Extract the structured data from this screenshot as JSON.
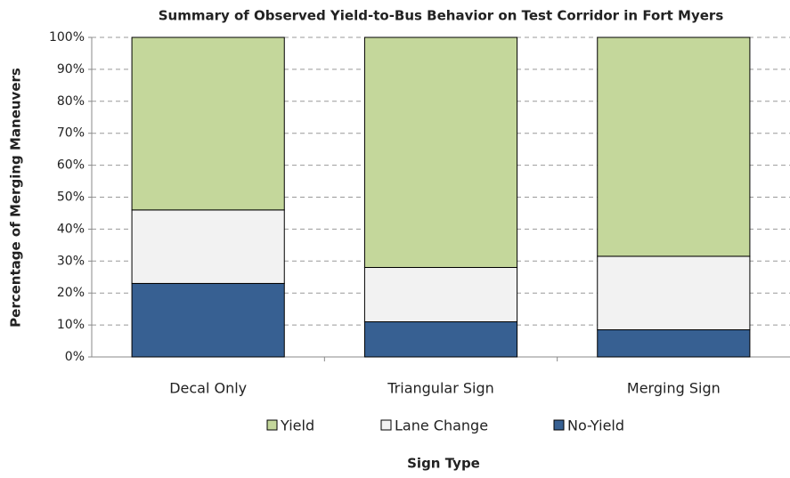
{
  "chart_data": {
    "type": "stacked_bar",
    "title": "Summary of Observed Yield-to-Bus Behavior on Test Corridor in Fort Myers",
    "x_label": "Sign Type",
    "y_label": "Percentage of Merging Maneuvers",
    "categories": [
      "Decal Only",
      "Triangular Sign",
      "Merging Sign"
    ],
    "series": [
      {
        "name": "Yield",
        "color": "#c4d79b",
        "values": [
          54,
          72,
          68.5
        ]
      },
      {
        "name": "Lane Change",
        "color": "#f2f2f2",
        "values": [
          23,
          17,
          23
        ]
      },
      {
        "name": "No-Yield",
        "color": "#376092",
        "values": [
          23,
          11,
          8.5
        ]
      }
    ],
    "ylim": [
      0,
      100
    ],
    "yticks": [
      {
        "value": 0,
        "label": "0%"
      },
      {
        "value": 10,
        "label": "10%"
      },
      {
        "value": 20,
        "label": "20%"
      },
      {
        "value": 30,
        "label": "30%"
      },
      {
        "value": 40,
        "label": "40%"
      },
      {
        "value": 50,
        "label": "50%"
      },
      {
        "value": 60,
        "label": "60%"
      },
      {
        "value": 70,
        "label": "70%"
      },
      {
        "value": 80,
        "label": "80%"
      },
      {
        "value": 90,
        "label": "90%"
      },
      {
        "value": 100,
        "label": "100%"
      }
    ],
    "grid": true,
    "legend": "bottom"
  }
}
